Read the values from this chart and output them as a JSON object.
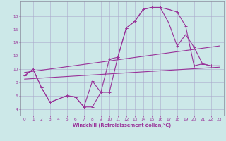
{
  "background_color": "#cce8e8",
  "grid_color": "#aaaacc",
  "line_color": "#993399",
  "xlabel": "Windchill (Refroidissement éolien,°C)",
  "xlim": [
    -0.5,
    23.5
  ],
  "ylim": [
    3.0,
    20.2
  ],
  "yticks": [
    4,
    6,
    8,
    10,
    12,
    14,
    16,
    18
  ],
  "xticks": [
    0,
    1,
    2,
    3,
    4,
    5,
    6,
    7,
    8,
    9,
    10,
    11,
    12,
    13,
    14,
    15,
    16,
    17,
    18,
    19,
    20,
    21,
    22,
    23
  ],
  "curve1_x": [
    0,
    1,
    2,
    3,
    4,
    5,
    6,
    7,
    8,
    9,
    10,
    11,
    12,
    13,
    14,
    15,
    16,
    17,
    18,
    19,
    20,
    21,
    22
  ],
  "curve1_y": [
    9.0,
    10.0,
    7.2,
    5.0,
    5.5,
    6.0,
    5.8,
    4.3,
    8.2,
    6.5,
    11.5,
    11.8,
    16.2,
    17.2,
    19.0,
    19.3,
    19.3,
    19.0,
    18.6,
    16.5,
    10.5,
    10.8,
    10.5
  ],
  "curve2_x": [
    0,
    1,
    2,
    3,
    4,
    5,
    6,
    7,
    8,
    9,
    10,
    11,
    12,
    13,
    14,
    15,
    16,
    17,
    18,
    19,
    20,
    21,
    22,
    23
  ],
  "curve2_y": [
    9.0,
    10.0,
    7.2,
    5.0,
    5.5,
    6.0,
    5.8,
    4.3,
    4.3,
    6.5,
    6.5,
    11.8,
    16.2,
    17.2,
    19.0,
    19.3,
    19.3,
    17.0,
    13.5,
    15.2,
    13.3,
    10.8,
    10.5,
    10.5
  ],
  "line1_x": [
    0,
    23
  ],
  "line1_y": [
    9.5,
    13.5
  ],
  "line2_x": [
    0,
    23
  ],
  "line2_y": [
    8.5,
    10.3
  ]
}
